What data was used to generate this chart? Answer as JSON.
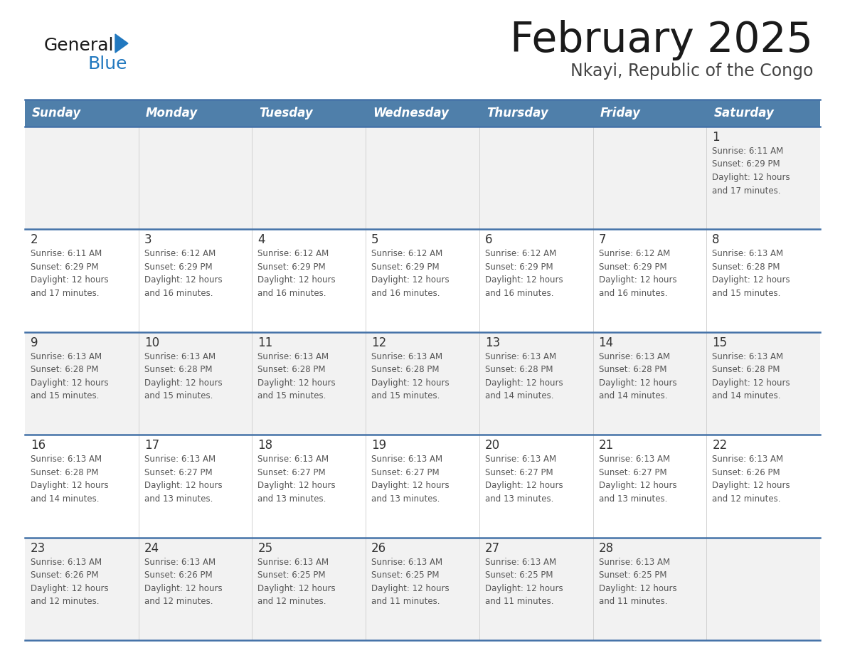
{
  "title": "February 2025",
  "subtitle": "Nkayi, Republic of the Congo",
  "days_of_week": [
    "Sunday",
    "Monday",
    "Tuesday",
    "Wednesday",
    "Thursday",
    "Friday",
    "Saturday"
  ],
  "header_bg": "#4f7faa",
  "header_text": "#ffffff",
  "row_bg_odd": "#f2f2f2",
  "row_bg_even": "#ffffff",
  "border_color": "#4472a8",
  "cell_border_color": "#9ab0cc",
  "title_color": "#1a1a1a",
  "subtitle_color": "#444444",
  "day_number_color": "#333333",
  "cell_text_color": "#555555",
  "logo_color_general": "#1a1a1a",
  "logo_color_blue": "#2178bf",
  "logo_triangle_color": "#2178bf",
  "calendar": [
    [
      {
        "day": null,
        "info": null
      },
      {
        "day": null,
        "info": null
      },
      {
        "day": null,
        "info": null
      },
      {
        "day": null,
        "info": null
      },
      {
        "day": null,
        "info": null
      },
      {
        "day": null,
        "info": null
      },
      {
        "day": 1,
        "info": "Sunrise: 6:11 AM\nSunset: 6:29 PM\nDaylight: 12 hours\nand 17 minutes."
      }
    ],
    [
      {
        "day": 2,
        "info": "Sunrise: 6:11 AM\nSunset: 6:29 PM\nDaylight: 12 hours\nand 17 minutes."
      },
      {
        "day": 3,
        "info": "Sunrise: 6:12 AM\nSunset: 6:29 PM\nDaylight: 12 hours\nand 16 minutes."
      },
      {
        "day": 4,
        "info": "Sunrise: 6:12 AM\nSunset: 6:29 PM\nDaylight: 12 hours\nand 16 minutes."
      },
      {
        "day": 5,
        "info": "Sunrise: 6:12 AM\nSunset: 6:29 PM\nDaylight: 12 hours\nand 16 minutes."
      },
      {
        "day": 6,
        "info": "Sunrise: 6:12 AM\nSunset: 6:29 PM\nDaylight: 12 hours\nand 16 minutes."
      },
      {
        "day": 7,
        "info": "Sunrise: 6:12 AM\nSunset: 6:29 PM\nDaylight: 12 hours\nand 16 minutes."
      },
      {
        "day": 8,
        "info": "Sunrise: 6:13 AM\nSunset: 6:28 PM\nDaylight: 12 hours\nand 15 minutes."
      }
    ],
    [
      {
        "day": 9,
        "info": "Sunrise: 6:13 AM\nSunset: 6:28 PM\nDaylight: 12 hours\nand 15 minutes."
      },
      {
        "day": 10,
        "info": "Sunrise: 6:13 AM\nSunset: 6:28 PM\nDaylight: 12 hours\nand 15 minutes."
      },
      {
        "day": 11,
        "info": "Sunrise: 6:13 AM\nSunset: 6:28 PM\nDaylight: 12 hours\nand 15 minutes."
      },
      {
        "day": 12,
        "info": "Sunrise: 6:13 AM\nSunset: 6:28 PM\nDaylight: 12 hours\nand 15 minutes."
      },
      {
        "day": 13,
        "info": "Sunrise: 6:13 AM\nSunset: 6:28 PM\nDaylight: 12 hours\nand 14 minutes."
      },
      {
        "day": 14,
        "info": "Sunrise: 6:13 AM\nSunset: 6:28 PM\nDaylight: 12 hours\nand 14 minutes."
      },
      {
        "day": 15,
        "info": "Sunrise: 6:13 AM\nSunset: 6:28 PM\nDaylight: 12 hours\nand 14 minutes."
      }
    ],
    [
      {
        "day": 16,
        "info": "Sunrise: 6:13 AM\nSunset: 6:28 PM\nDaylight: 12 hours\nand 14 minutes."
      },
      {
        "day": 17,
        "info": "Sunrise: 6:13 AM\nSunset: 6:27 PM\nDaylight: 12 hours\nand 13 minutes."
      },
      {
        "day": 18,
        "info": "Sunrise: 6:13 AM\nSunset: 6:27 PM\nDaylight: 12 hours\nand 13 minutes."
      },
      {
        "day": 19,
        "info": "Sunrise: 6:13 AM\nSunset: 6:27 PM\nDaylight: 12 hours\nand 13 minutes."
      },
      {
        "day": 20,
        "info": "Sunrise: 6:13 AM\nSunset: 6:27 PM\nDaylight: 12 hours\nand 13 minutes."
      },
      {
        "day": 21,
        "info": "Sunrise: 6:13 AM\nSunset: 6:27 PM\nDaylight: 12 hours\nand 13 minutes."
      },
      {
        "day": 22,
        "info": "Sunrise: 6:13 AM\nSunset: 6:26 PM\nDaylight: 12 hours\nand 12 minutes."
      }
    ],
    [
      {
        "day": 23,
        "info": "Sunrise: 6:13 AM\nSunset: 6:26 PM\nDaylight: 12 hours\nand 12 minutes."
      },
      {
        "day": 24,
        "info": "Sunrise: 6:13 AM\nSunset: 6:26 PM\nDaylight: 12 hours\nand 12 minutes."
      },
      {
        "day": 25,
        "info": "Sunrise: 6:13 AM\nSunset: 6:25 PM\nDaylight: 12 hours\nand 12 minutes."
      },
      {
        "day": 26,
        "info": "Sunrise: 6:13 AM\nSunset: 6:25 PM\nDaylight: 12 hours\nand 11 minutes."
      },
      {
        "day": 27,
        "info": "Sunrise: 6:13 AM\nSunset: 6:25 PM\nDaylight: 12 hours\nand 11 minutes."
      },
      {
        "day": 28,
        "info": "Sunrise: 6:13 AM\nSunset: 6:25 PM\nDaylight: 12 hours\nand 11 minutes."
      },
      {
        "day": null,
        "info": null
      }
    ]
  ]
}
